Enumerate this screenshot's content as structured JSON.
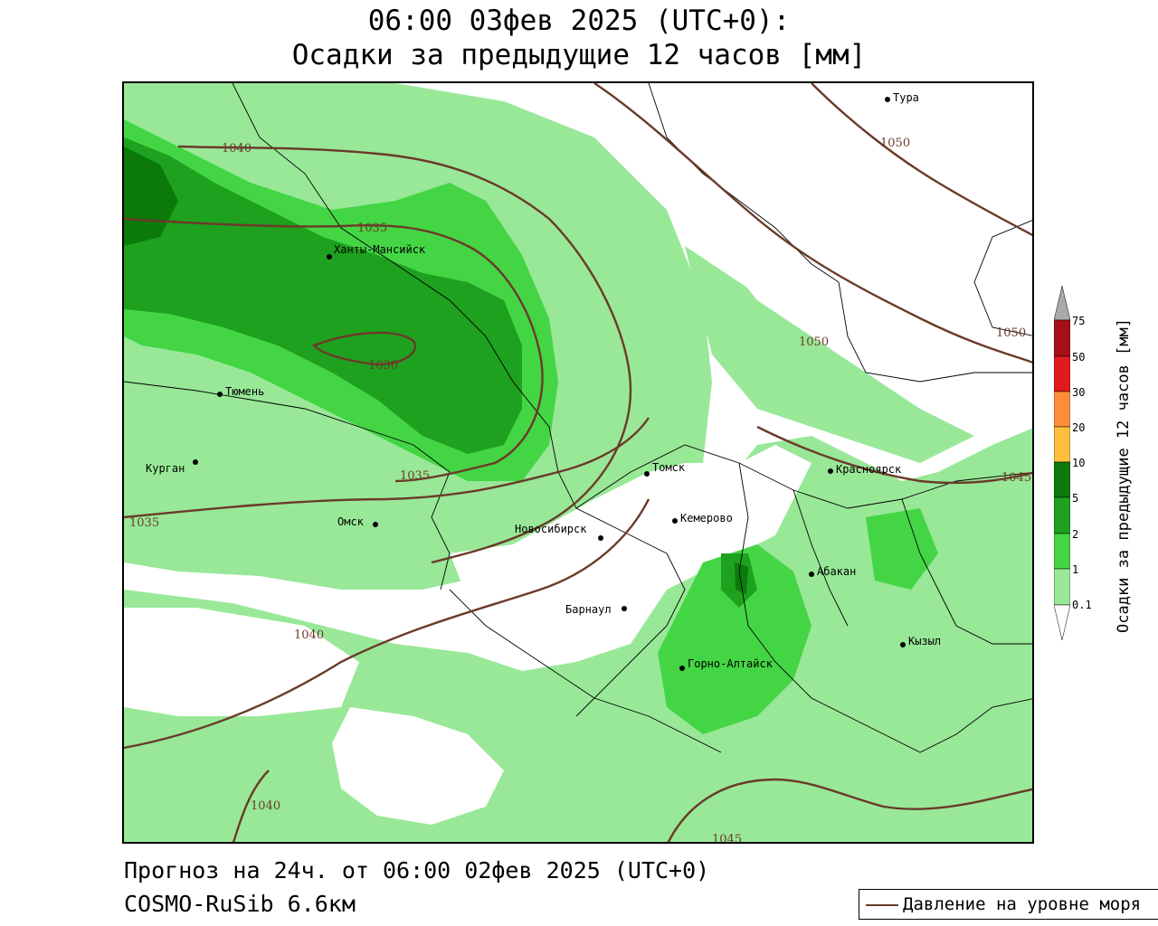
{
  "title": {
    "line1": "06:00 03фев 2025 (UTC+0):",
    "line2": "Осадки за предыдущие 12 часов [мм]"
  },
  "footer": {
    "forecast": "Прогноз на 24ч. от 06:00 02фев 2025 (UTC+0)",
    "model": "COSMO-RuSib 6.6км"
  },
  "legend": {
    "pressure_label": "Давление на уровне моря",
    "pressure_color": "#6b3a2a"
  },
  "colorbar": {
    "title": "Осадки за предыдущие 12 часов [мм]",
    "ticks": [
      "75",
      "50",
      "30",
      "20",
      "10",
      "5",
      "2",
      "1",
      "0.1"
    ],
    "colors": [
      "#a9a9a9",
      "#a50f15",
      "#e31a1c",
      "#fd8d3c",
      "#fdbf3c",
      "#0b7a0b",
      "#1ea11e",
      "#44d544",
      "#98e898",
      "#ffffff"
    ]
  },
  "cities": [
    {
      "name": "Тура"
    },
    {
      "name": "Ханты-Мансийск"
    },
    {
      "name": "Тюмень"
    },
    {
      "name": "Курган"
    },
    {
      "name": "Омск"
    },
    {
      "name": "Новосибирск"
    },
    {
      "name": "Томск"
    },
    {
      "name": "Кемерово"
    },
    {
      "name": "Красноярск"
    },
    {
      "name": "Абакан"
    },
    {
      "name": "Барнаул"
    },
    {
      "name": "Горно-Алтайск"
    },
    {
      "name": "Кызыл"
    }
  ],
  "isobar_labels": [
    "1040",
    "1035",
    "1030",
    "1035",
    "1035",
    "1040",
    "1040",
    "1050",
    "1050",
    "1050",
    "1045",
    "1045"
  ]
}
